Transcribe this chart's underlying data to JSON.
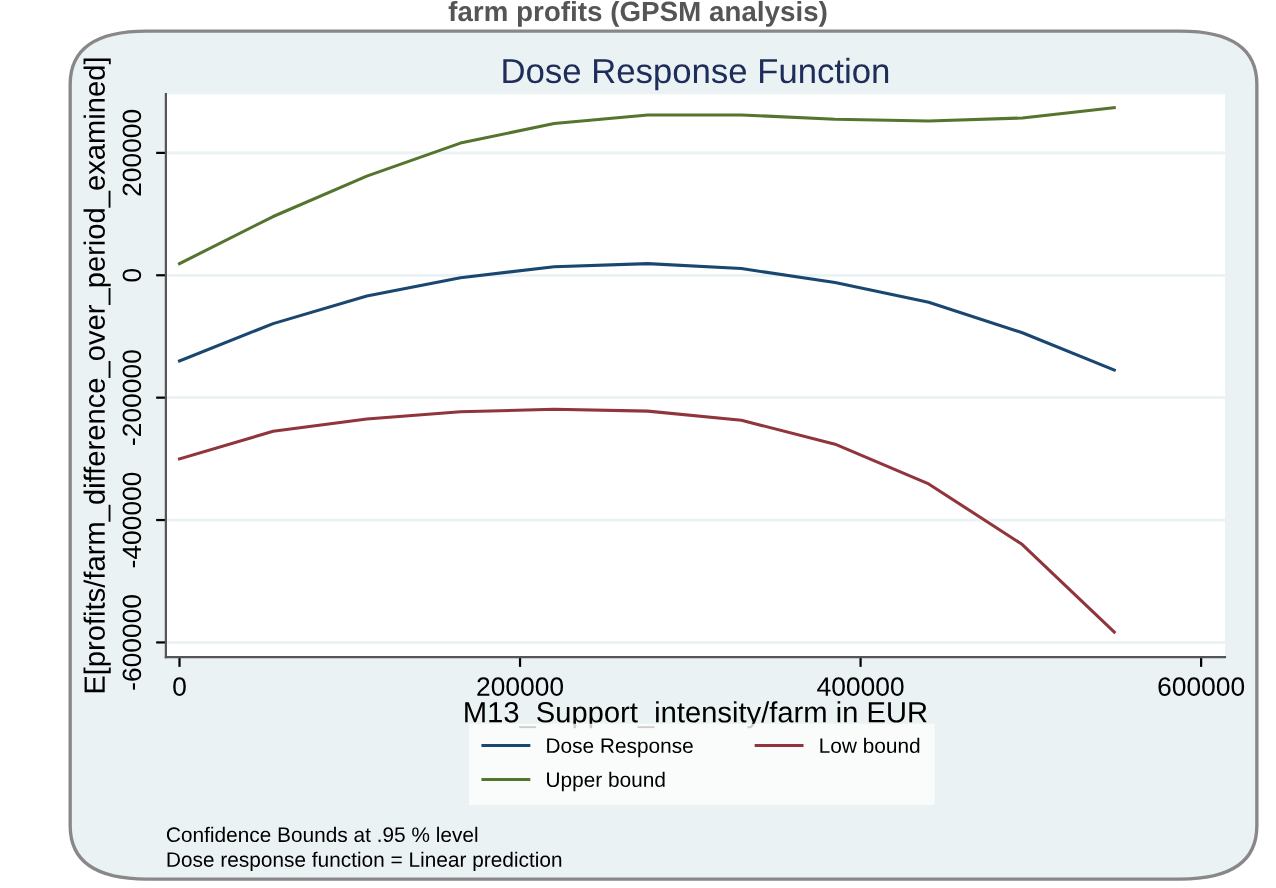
{
  "chart_data": {
    "type": "line",
    "title": "Dose Response Function",
    "subtitle": "farm profits (GPSM analysis)",
    "xlabel": "M13_Support_intensity/farm in EUR",
    "ylabel": "E[profits/farm_difference_over_period_examined]",
    "x": [
      0,
      55000,
      110000,
      165000,
      220000,
      275000,
      330000,
      385000,
      440000,
      495000,
      549000
    ],
    "series": [
      {
        "name": "Dose Response",
        "color": "#1a476f",
        "values": [
          -140000,
          -79000,
          -34000,
          -4000,
          14000,
          19000,
          11000,
          -12000,
          -44000,
          -94000,
          -155000
        ]
      },
      {
        "name": "Low bound",
        "color": "#90353b",
        "values": [
          -300000,
          -255000,
          -235000,
          -223000,
          -219000,
          -222000,
          -237000,
          -276000,
          -341000,
          -440000,
          -583000
        ]
      },
      {
        "name": "Upper bound",
        "color": "#55752f",
        "values": [
          19000,
          96000,
          162000,
          216000,
          248000,
          262000,
          262000,
          255000,
          252000,
          257000,
          274000
        ]
      }
    ],
    "xlim": [
      -8000,
      614000
    ],
    "ylim": [
      -624000,
      296000
    ],
    "xticks": [
      0,
      200000,
      400000,
      600000
    ],
    "yticks": [
      -600000,
      -400000,
      -200000,
      0,
      200000
    ],
    "grid": "y",
    "legend": "bottom",
    "marker": "none",
    "line_style": "solid",
    "annotations": [
      "Confidence Bounds at .95 % level",
      "Dose response function = Linear prediction"
    ]
  }
}
